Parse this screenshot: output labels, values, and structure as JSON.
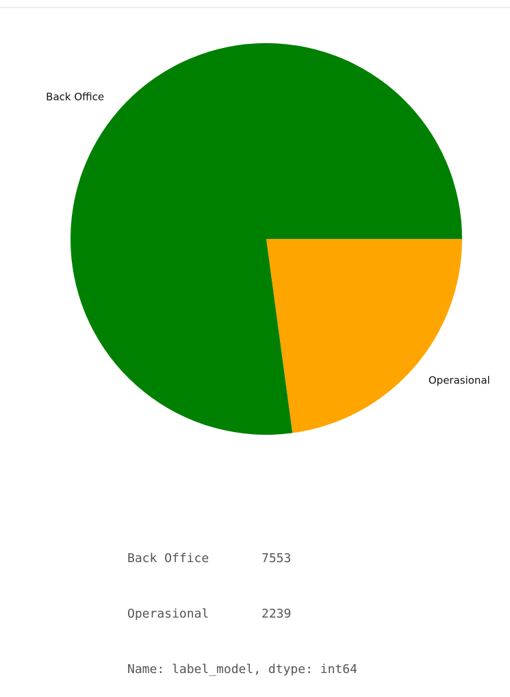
{
  "chart_data": {
    "type": "pie",
    "categories": [
      "Back Office",
      "Operasional"
    ],
    "values": [
      7553,
      2239
    ],
    "colors": [
      "#008000",
      "#FFA500"
    ],
    "title": "",
    "slice_labels": [
      "Back Office",
      "Operasional"
    ]
  },
  "output": {
    "rows": [
      {
        "name": "Back Office",
        "value": "7553"
      },
      {
        "name": "Operasional",
        "value": "2239"
      }
    ],
    "footer": "Name: label_model, dtype: int64"
  }
}
